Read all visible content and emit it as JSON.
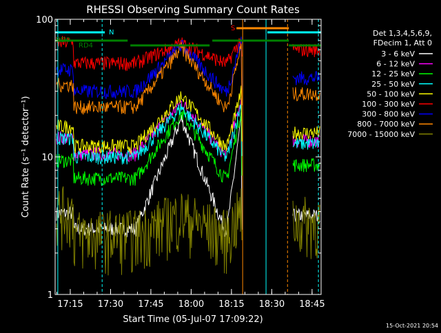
{
  "chart_data": {
    "type": "line",
    "title": "RHESSI Observing Summary Count Rates",
    "xlabel": "Start Time (05-Jul-07 17:09:22)",
    "ylabel": "Count Rate (s⁻¹ detector⁻¹)",
    "y_scale": "log",
    "ylim": [
      1,
      100
    ],
    "xlim_minutes": [
      0,
      99
    ],
    "x_ticks": [
      "17:15",
      "17:30",
      "17:45",
      "18:00",
      "18:15",
      "18:30",
      "18:45"
    ],
    "y_ticks": [
      "1",
      "10",
      "100"
    ],
    "legend_header": [
      "Det 1,3,4,5,6,9,",
      "FDecim 1, Att 0"
    ],
    "footer_timestamp": "15-Oct-2021 20:54",
    "flag_labels": {
      "rd0": "RD0",
      "rd4": "RD4",
      "n": "N",
      "s": "S"
    },
    "series": [
      {
        "name": "3 - 6 keV",
        "color": "#ffffff",
        "base": 3.0,
        "peak": 19.0
      },
      {
        "name": "6 - 12 keV",
        "color": "#ff00ff",
        "base": 10.5,
        "peak": 25.0
      },
      {
        "name": "12 - 25 keV",
        "color": "#00ff00",
        "base": 7.0,
        "peak": 21.0
      },
      {
        "name": "25 - 50 keV",
        "color": "#00ffff",
        "base": 10.0,
        "peak": 23.0
      },
      {
        "name": "50 - 100 keV",
        "color": "#ffff00",
        "base": 12.0,
        "peak": 28.0
      },
      {
        "name": "100 - 300 keV",
        "color": "#ff0000",
        "base": 48.0,
        "peak": 67.0
      },
      {
        "name": "300 - 800 keV",
        "color": "#0000ff",
        "base": 30.0,
        "peak": 65.0
      },
      {
        "name": "800 - 7000 keV",
        "color": "#ff8800",
        "base": 23.0,
        "peak": 62.0
      },
      {
        "name": "7000 - 15000 keV",
        "color": "#808000",
        "base": 2.5,
        "peak": 3.5
      }
    ]
  }
}
